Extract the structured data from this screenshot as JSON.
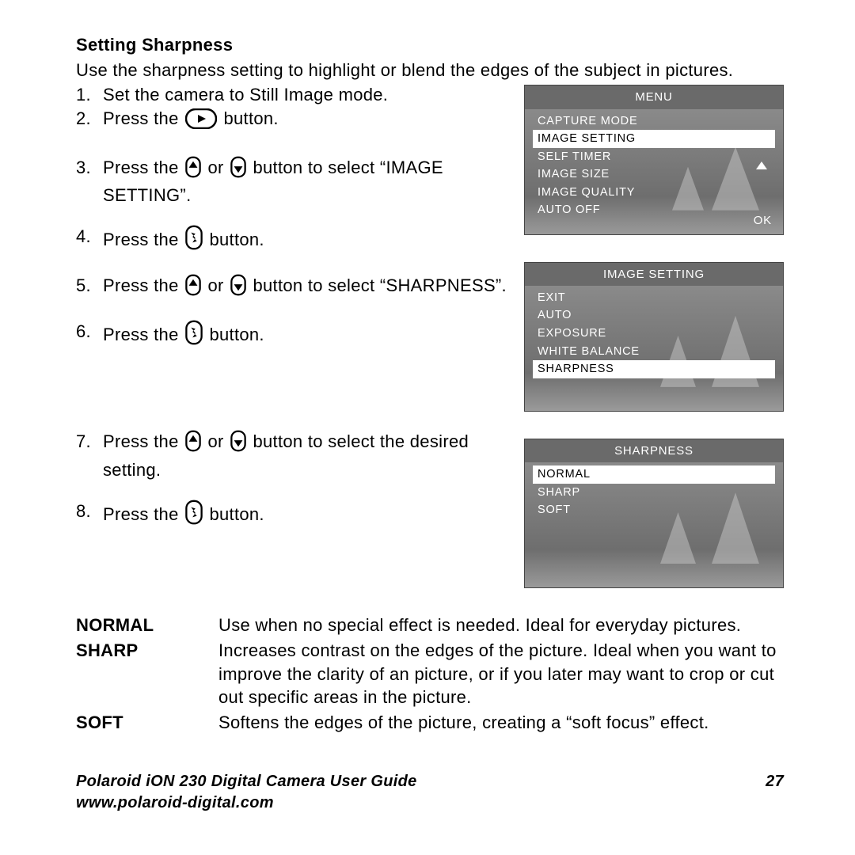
{
  "heading": "Setting Sharpness",
  "intro": "Use the sharpness setting to highlight or blend the edges of the subject in pictures.",
  "steps": {
    "s1": "Set the camera to Still Image mode.",
    "s2a": "Press the ",
    "s2b": " button.",
    "s3a": "Press the ",
    "s3b": " or ",
    "s3c": " button to select “IMAGE SETTING”.",
    "s4a": "Press the ",
    "s4b": " button.",
    "s5a": "Press the ",
    "s5b": " or ",
    "s5c": " button to select “SHARPNESS”.",
    "s6a": "Press the ",
    "s6b": " button.",
    "s7a": "Press the ",
    "s7b": " or ",
    "s7c": " button to select the desired setting.",
    "s8a": "Press the ",
    "s8b": " button."
  },
  "lcd1": {
    "title": "MENU",
    "items": [
      "CAPTURE MODE",
      "IMAGE SETTING",
      "SELF TIMER",
      "IMAGE SIZE",
      "IMAGE QUALITY",
      "AUTO OFF"
    ],
    "selected_index": 1,
    "ok_label": "OK"
  },
  "lcd2": {
    "title": "IMAGE SETTING",
    "items": [
      "EXIT",
      "AUTO",
      "EXPOSURE",
      "WHITE BALANCE",
      "SHARPNESS"
    ],
    "selected_index": 4
  },
  "lcd3": {
    "title": "SHARPNESS",
    "items": [
      "NORMAL",
      "SHARP",
      "SOFT"
    ],
    "selected_index": 0
  },
  "defs": [
    {
      "term": "NORMAL",
      "desc": "Use when no special effect is needed. Ideal for everyday pictures."
    },
    {
      "term": "SHARP",
      "desc": "Increases contrast on the edges of the picture. Ideal when you want to improve the clarity of an picture, or if you later may want to crop or cut out specific areas in the picture."
    },
    {
      "term": "SOFT",
      "desc": "Softens the edges of the picture, creating a “soft focus” effect."
    }
  ],
  "footer": {
    "title": "Polaroid iON 230 Digital Camera User Guide",
    "url": "www.polaroid-digital.com",
    "page": "27"
  },
  "colors": {
    "text": "#000000",
    "lcd_bg": "#7f7f7f",
    "lcd_header": "#6a6a6a",
    "sel_bg": "#ffffff",
    "sel_fg": "#000000"
  }
}
